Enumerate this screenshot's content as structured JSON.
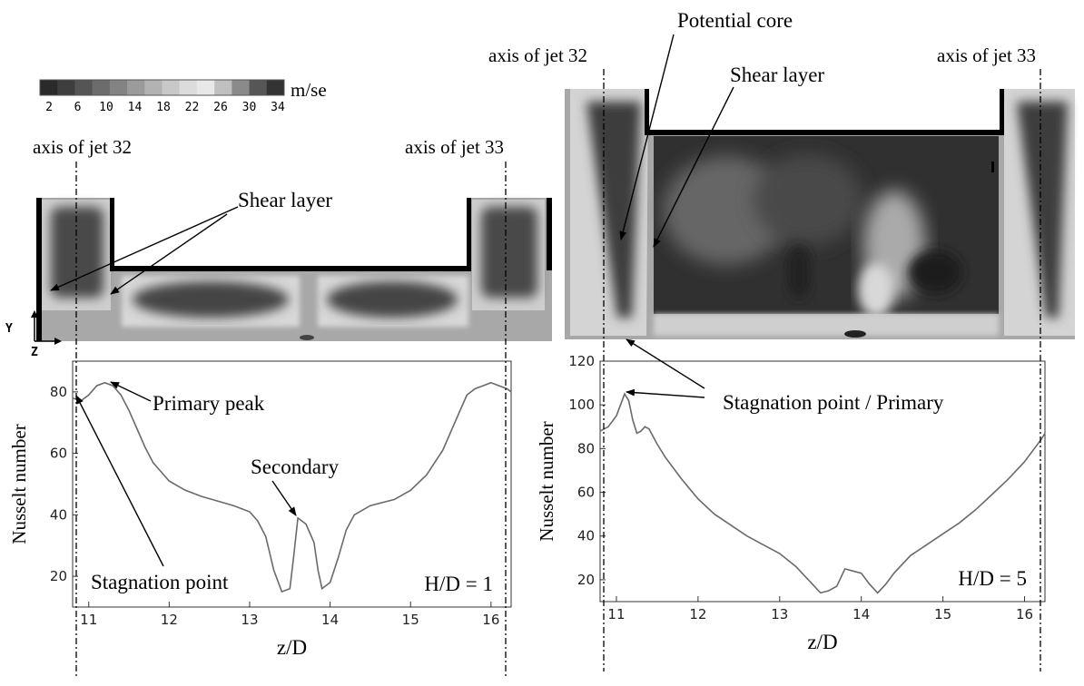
{
  "colorbar": {
    "ticks": [
      "2",
      "6",
      "10",
      "14",
      "18",
      "22",
      "26",
      "30",
      "34"
    ],
    "unit": "m/se",
    "colors": [
      "#2a2a2a",
      "#3e3e3e",
      "#555555",
      "#6c6c6c",
      "#838383",
      "#9b9b9b",
      "#b2b2b2",
      "#c8c8c8",
      "#dcdcdc",
      "#e8e8e8",
      "#c0c0c0",
      "#8a8a8a",
      "#565656",
      "#333333"
    ]
  },
  "left_panel": {
    "axis_label_left": "axis of jet 32",
    "axis_label_right": "axis of jet 33",
    "shear_layer_label": "Shear layer",
    "coord_y": "Y",
    "coord_z": "Z",
    "annotation_primary": "Primary peak",
    "annotation_secondary": "Secondary",
    "annotation_stagnation": "Stagnation point",
    "hd_label": "H/D = 1"
  },
  "right_panel": {
    "axis_label_left": "axis of jet 32",
    "axis_label_right": "axis of jet 33",
    "potential_core_label": "Potential core",
    "shear_layer_label": "Shear layer",
    "annotation_stagnation": "Stagnation point / Primary",
    "hd_label": "H/D = 5"
  },
  "chart_data": [
    {
      "type": "line",
      "title": "",
      "xlabel": "z/D",
      "ylabel": "Nusselt number",
      "xlim": [
        10.8,
        16.25
      ],
      "ylim": [
        10,
        90
      ],
      "xticks": [
        11,
        12,
        13,
        14,
        15,
        16
      ],
      "yticks": [
        20,
        40,
        60,
        80
      ],
      "annotation": "H/D = 1",
      "series": [
        {
          "x": [
            10.8,
            10.9,
            11.0,
            11.1,
            11.2,
            11.3,
            11.4,
            11.5,
            11.6,
            11.7,
            11.8,
            11.9,
            12.0,
            12.2,
            12.4,
            12.6,
            12.8,
            13.0,
            13.1,
            13.2,
            13.3,
            13.4,
            13.5,
            13.55,
            13.6,
            13.7,
            13.8,
            13.85,
            13.9,
            14.0,
            14.1,
            14.2,
            14.3,
            14.5,
            14.8,
            15.0,
            15.2,
            15.4,
            15.5,
            15.6,
            15.7,
            15.8,
            15.9,
            16.0,
            16.1,
            16.2,
            16.25
          ],
          "y": [
            78,
            77,
            79,
            82,
            83,
            82,
            79,
            74,
            68,
            62,
            57,
            54,
            51,
            48,
            46,
            44.5,
            43,
            41,
            38,
            33,
            22,
            15,
            16,
            27,
            39,
            37,
            31,
            22,
            16,
            18,
            26,
            35,
            40,
            43,
            45,
            48,
            53,
            61,
            67,
            73,
            79,
            81,
            82,
            83,
            82,
            81,
            80
          ]
        }
      ]
    },
    {
      "type": "line",
      "title": "",
      "xlabel": "z/D",
      "ylabel": "Nusselt number",
      "xlim": [
        10.8,
        16.25
      ],
      "ylim": [
        10,
        120
      ],
      "xticks": [
        11,
        12,
        13,
        14,
        15,
        16
      ],
      "yticks": [
        20,
        40,
        60,
        80,
        100,
        120
      ],
      "annotation": "H/D = 5",
      "series": [
        {
          "x": [
            10.8,
            10.9,
            11.0,
            11.1,
            11.15,
            11.2,
            11.25,
            11.3,
            11.35,
            11.4,
            11.5,
            11.6,
            11.8,
            12.0,
            12.2,
            12.4,
            12.6,
            12.8,
            13.0,
            13.2,
            13.4,
            13.5,
            13.6,
            13.7,
            13.8,
            13.9,
            14.0,
            14.1,
            14.2,
            14.3,
            14.4,
            14.6,
            14.8,
            15.0,
            15.2,
            15.4,
            15.6,
            15.8,
            16.0,
            16.2,
            16.25
          ],
          "y": [
            88,
            90,
            95,
            105,
            102,
            93,
            87,
            88,
            90,
            89,
            82,
            76,
            66,
            57,
            50,
            45,
            40,
            36,
            32,
            26,
            18,
            14,
            15,
            17,
            25,
            24,
            23,
            18,
            14,
            18,
            23,
            31,
            36,
            41,
            46,
            52,
            59,
            66,
            74,
            84,
            87
          ]
        }
      ]
    }
  ]
}
